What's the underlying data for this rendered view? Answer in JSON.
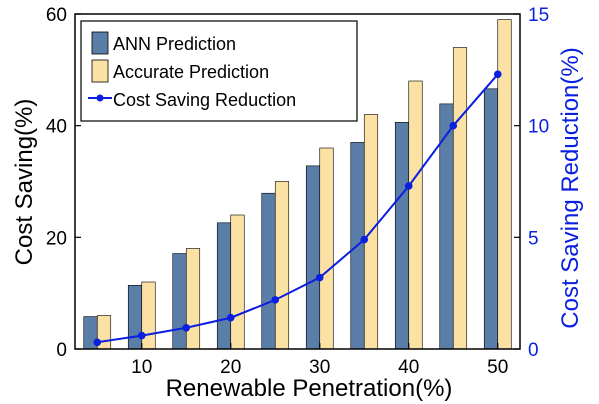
{
  "chart_data": {
    "type": "bar",
    "xlabel": "Renewable Penetration(%)",
    "ylabel": "Cost Saving(%)",
    "y2label": "Cost Saving Reduction(%)",
    "ylim": [
      0,
      60
    ],
    "y2lim": [
      0,
      15
    ],
    "y_ticks": [
      "0",
      "20",
      "40",
      "60"
    ],
    "y2_ticks": [
      "0",
      "5",
      "10",
      "15"
    ],
    "x_ticks": [
      "10",
      "20",
      "30",
      "40",
      "50"
    ],
    "x_tick_values": [
      10,
      20,
      30,
      40,
      50
    ],
    "categories": [
      5,
      10,
      15,
      20,
      25,
      30,
      35,
      40,
      45,
      50
    ],
    "series": [
      {
        "name": "ANN Prediction",
        "type": "bar",
        "axis": "left",
        "color": "#5b7ea8",
        "values": [
          5.8,
          11.4,
          17.1,
          22.6,
          27.9,
          32.8,
          37.0,
          40.6,
          43.9,
          46.6
        ]
      },
      {
        "name": "Accurate Prediction",
        "type": "bar",
        "axis": "left",
        "color": "#fbe2a4",
        "values": [
          6.0,
          12.0,
          18.0,
          24.0,
          30.0,
          36.0,
          42.0,
          48.0,
          54.0,
          59.0
        ]
      },
      {
        "name": "Cost Saving Reduction",
        "type": "line",
        "axis": "right",
        "color": "#0a1fe0",
        "values": [
          0.3,
          0.6,
          0.95,
          1.4,
          2.2,
          3.2,
          4.9,
          7.3,
          10.0,
          12.3
        ]
      }
    ],
    "legend_position": "top-left",
    "grid": false
  }
}
